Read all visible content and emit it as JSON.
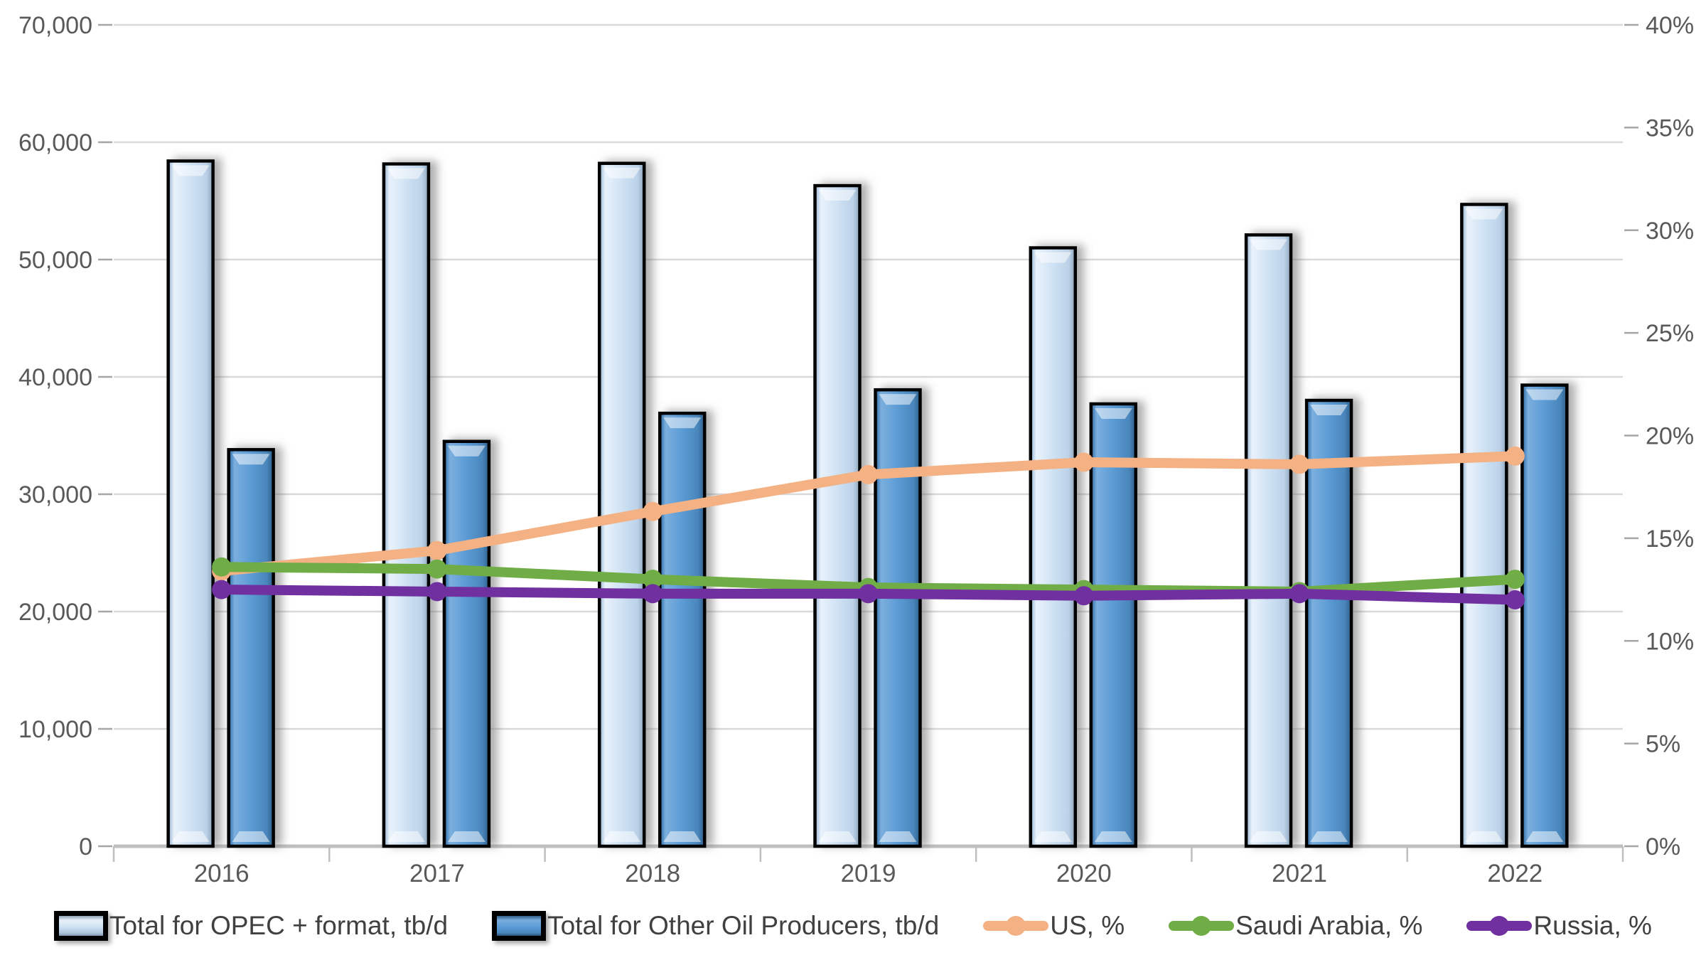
{
  "chart_data": {
    "type": "combo-bar-line",
    "categories": [
      "2016",
      "2017",
      "2018",
      "2019",
      "2020",
      "2021",
      "2022"
    ],
    "bar_series": [
      {
        "name": "Total for OPEC + format, tb/d",
        "axis": "left",
        "values": [
          58400,
          58150,
          58200,
          56300,
          51000,
          52100,
          54700
        ],
        "fill": "#CFE2F4",
        "style": "light"
      },
      {
        "name": "Total for Other Oil Producers, tb/d",
        "axis": "left",
        "values": [
          33800,
          34500,
          36900,
          38900,
          37700,
          38000,
          39300
        ],
        "fill": "#5B9BD5",
        "style": "dark"
      }
    ],
    "line_series": [
      {
        "name": "US, %",
        "axis": "right",
        "values": [
          13.4,
          14.4,
          16.3,
          18.1,
          18.7,
          18.6,
          19.0
        ],
        "color": "#F4B183"
      },
      {
        "name": "Saudi Arabia, %",
        "axis": "right",
        "values": [
          13.6,
          13.5,
          13.0,
          12.6,
          12.5,
          12.4,
          13.0
        ],
        "color": "#70AD47"
      },
      {
        "name": "Russia, %",
        "axis": "right",
        "values": [
          12.5,
          12.4,
          12.3,
          12.3,
          12.2,
          12.3,
          12.0
        ],
        "color": "#7030A0"
      }
    ],
    "left_axis": {
      "min": 0,
      "max": 70000,
      "step": 10000,
      "tick_labels": [
        "0",
        "10,000",
        "20,000",
        "30,000",
        "40,000",
        "50,000",
        "60,000",
        "70,000"
      ]
    },
    "right_axis": {
      "min": 0,
      "max": 40,
      "step": 5,
      "tick_labels": [
        "0%",
        "5%",
        "10%",
        "15%",
        "20%",
        "25%",
        "30%",
        "35%",
        "40%"
      ]
    },
    "grid": "horizontal-only",
    "legend_position": "bottom",
    "title": ""
  },
  "legend": {
    "items": [
      {
        "label": "Total for OPEC + format, tb/d",
        "type": "bar",
        "swatch": "light"
      },
      {
        "label": "Total for Other Oil Producers, tb/d",
        "type": "bar",
        "swatch": "dark"
      },
      {
        "label": "US, %",
        "type": "line",
        "color": "#F4B183"
      },
      {
        "label": "Saudi Arabia, %",
        "type": "line",
        "color": "#70AD47"
      },
      {
        "label": "Russia, %",
        "type": "line",
        "color": "#7030A0"
      }
    ]
  },
  "palette": {
    "bar_light_fill": "#CFE2F4",
    "bar_dark_fill": "#5B9BD5",
    "us_line": "#F4B183",
    "saudi_line": "#70AD47",
    "russia_line": "#7030A0",
    "gridline": "#D9D9D9",
    "axis_line": "#BFBFBF",
    "tick_mark": "#A6A6A6",
    "axis_text": "#595959",
    "legend_text": "#404040",
    "bar_border": "#000000"
  }
}
